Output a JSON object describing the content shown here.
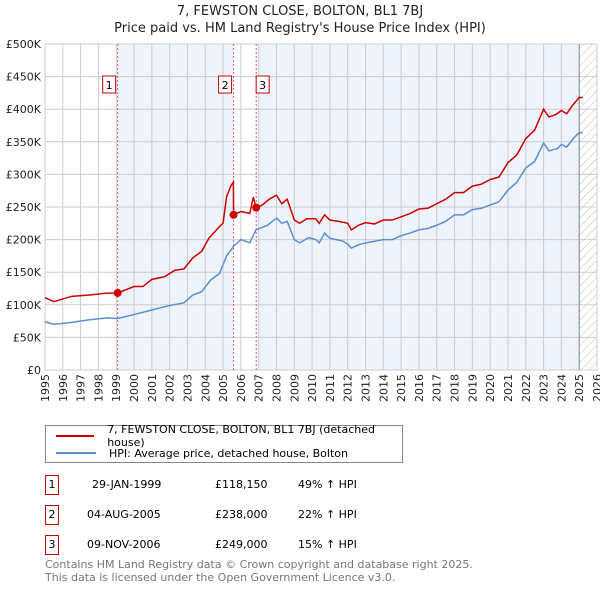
{
  "chart_data": {
    "type": "line",
    "title": "7, FEWSTON CLOSE, BOLTON, BL1 7BJ",
    "subtitle": "Price paid vs. HM Land Registry's House Price Index (HPI)",
    "xlim": [
      1995,
      2026
    ],
    "ylim": [
      0,
      500000
    ],
    "yticks": [
      0,
      50000,
      100000,
      150000,
      200000,
      250000,
      300000,
      350000,
      400000,
      450000,
      500000
    ],
    "ytick_labels": [
      "£0",
      "£50K",
      "£100K",
      "£150K",
      "£200K",
      "£250K",
      "£300K",
      "£350K",
      "£400K",
      "£450K",
      "£500K"
    ],
    "xticks": [
      "1995",
      "1996",
      "1997",
      "1998",
      "1999",
      "2000",
      "2001",
      "2002",
      "2003",
      "2004",
      "2005",
      "2006",
      "2007",
      "2008",
      "2009",
      "2010",
      "2011",
      "2012",
      "2013",
      "2014",
      "2015",
      "2016",
      "2017",
      "2018",
      "2019",
      "2020",
      "2021",
      "2022",
      "2023",
      "2024",
      "2025",
      "2026"
    ],
    "grid": true,
    "forecast_from": 2025.0,
    "series": [
      {
        "name": "7, FEWSTON CLOSE, BOLTON, BL1 7BJ (detached house)",
        "color": "#cc0000",
        "x": [
          1995,
          1995.5,
          1996.5,
          1997.5,
          1998.5,
          1999.08,
          2000,
          2000.5,
          2001,
          2001.7,
          2002.3,
          2002.8,
          2003.3,
          2003.8,
          2004.2,
          2004.8,
          2005,
          2005.2,
          2005.45,
          2005.58,
          2005.59,
          2006,
          2006.5,
          2006.7,
          2006.85,
          2007.2,
          2007.6,
          2008,
          2008.3,
          2008.6,
          2009,
          2009.3,
          2009.7,
          2010.2,
          2010.4,
          2010.7,
          2011,
          2011.5,
          2012,
          2012.2,
          2012.6,
          2013,
          2013.5,
          2014,
          2014.5,
          2015,
          2015.5,
          2016,
          2016.5,
          2017,
          2017.5,
          2018,
          2018.5,
          2019,
          2019.5,
          2020,
          2020.5,
          2021,
          2021.5,
          2022,
          2022.5,
          2023,
          2023.3,
          2023.7,
          2024,
          2024.3,
          2024.6,
          2025,
          2025.2
        ],
        "y": [
          111000,
          105000,
          113000,
          115000,
          118000,
          118150,
          128000,
          128000,
          139000,
          143000,
          153000,
          155000,
          172000,
          182000,
          202000,
          220000,
          225000,
          266000,
          283000,
          288000,
          238000,
          243000,
          240000,
          265000,
          249000,
          253000,
          262000,
          268000,
          255000,
          262000,
          230000,
          225000,
          232000,
          232000,
          225000,
          238000,
          230000,
          228000,
          225000,
          215000,
          222000,
          226000,
          224000,
          230000,
          230000,
          235000,
          240000,
          247000,
          248000,
          255000,
          262000,
          272000,
          272000,
          282000,
          285000,
          292000,
          296000,
          318000,
          330000,
          355000,
          368000,
          400000,
          388000,
          392000,
          398000,
          393000,
          405000,
          418000,
          418000
        ]
      },
      {
        "name": "HPI: Average price, detached house, Bolton",
        "color": "#5b8fd0",
        "x": [
          1995,
          1995.5,
          1996.5,
          1997.5,
          1998.5,
          1999.08,
          2000,
          2001,
          2002,
          2002.8,
          2003.3,
          2003.8,
          2004.3,
          2004.8,
          2005.2,
          2005.6,
          2006,
          2006.5,
          2006.85,
          2007.5,
          2008,
          2008.3,
          2008.6,
          2009,
          2009.3,
          2009.8,
          2010.2,
          2010.4,
          2010.7,
          2011,
          2011.7,
          2012,
          2012.2,
          2012.7,
          2013.2,
          2014,
          2014.5,
          2015,
          2015.5,
          2016,
          2016.5,
          2017,
          2017.5,
          2018,
          2018.5,
          2019,
          2019.5,
          2020,
          2020.5,
          2021,
          2021.5,
          2022,
          2022.5,
          2023,
          2023.3,
          2023.8,
          2024,
          2024.3,
          2024.7,
          2025,
          2025.2
        ],
        "y": [
          74000,
          70000,
          73000,
          77000,
          80000,
          79000,
          85000,
          92000,
          99000,
          103000,
          115000,
          120000,
          138000,
          148000,
          175000,
          190000,
          200000,
          195000,
          215000,
          222000,
          233000,
          225000,
          228000,
          200000,
          195000,
          203000,
          200000,
          195000,
          210000,
          202000,
          198000,
          193000,
          187000,
          193000,
          196000,
          200000,
          200000,
          206000,
          210000,
          215000,
          217000,
          222000,
          228000,
          238000,
          238000,
          246000,
          248000,
          253000,
          258000,
          276000,
          288000,
          310000,
          320000,
          348000,
          336000,
          340000,
          346000,
          342000,
          356000,
          364000,
          364000
        ]
      }
    ],
    "sales": [
      {
        "id": "1",
        "x": 1999.08,
        "y": 118150,
        "date": "29-JAN-1999",
        "price": "£118,150",
        "hpi": "49% ↑ HPI"
      },
      {
        "id": "2",
        "x": 2005.59,
        "y": 238000,
        "date": "04-AUG-2005",
        "price": "£238,000",
        "hpi": "22% ↑ HPI"
      },
      {
        "id": "3",
        "x": 2006.86,
        "y": 249000,
        "date": "09-NOV-2006",
        "price": "£249,000",
        "hpi": "15% ↑ HPI"
      }
    ]
  },
  "footer": {
    "line1": "Contains HM Land Registry data © Crown copyright and database right 2025.",
    "line2": "This data is licensed under the Open Government Licence v3.0."
  }
}
